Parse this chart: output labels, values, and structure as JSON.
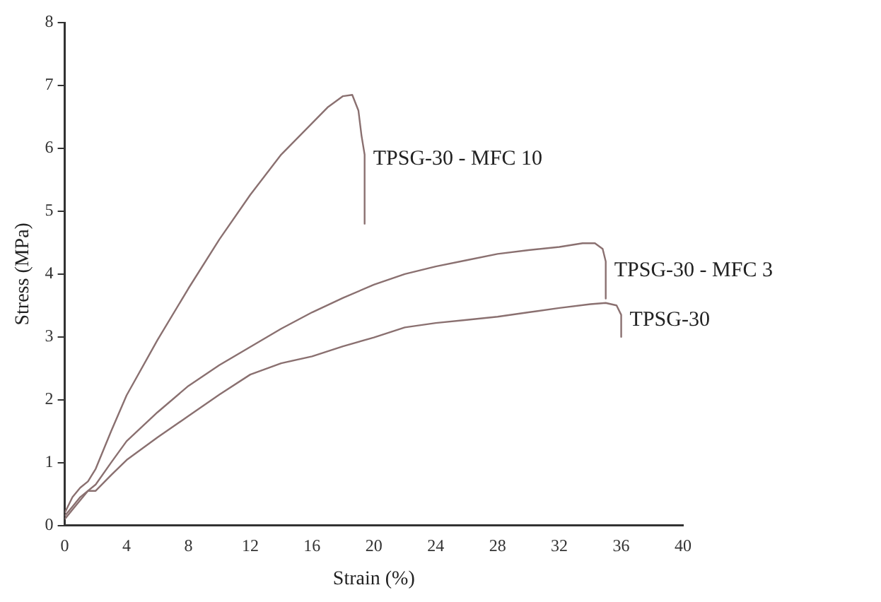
{
  "chart_data": {
    "type": "line",
    "xlabel": "Strain (%)",
    "ylabel": "Stress (MPa)",
    "xlim": [
      0,
      40
    ],
    "xticks": [
      0,
      4,
      8,
      12,
      16,
      20,
      24,
      28,
      32,
      36,
      40
    ],
    "ylim": [
      0,
      8
    ],
    "yticks": [
      0,
      1,
      2,
      3,
      4,
      5,
      6,
      7,
      8
    ],
    "grid": false,
    "legend": false,
    "marker": "none",
    "line_style": "solid",
    "series": [
      {
        "name": "TPSG-30 - MFC 10",
        "color": "#8a7070",
        "x": [
          0,
          0.5,
          1,
          1.5,
          2,
          3,
          4,
          6,
          8,
          10,
          12,
          14,
          16,
          17,
          18,
          18.6,
          19,
          19.2,
          19.4,
          19.4
        ],
        "values": [
          0.2,
          0.45,
          0.6,
          0.7,
          0.9,
          1.5,
          2.07,
          2.95,
          3.77,
          4.55,
          5.26,
          5.9,
          6.4,
          6.65,
          6.83,
          6.85,
          6.6,
          6.2,
          5.9,
          4.8
        ]
      },
      {
        "name": "TPSG-30 - MFC 3",
        "color": "#8a7070",
        "x": [
          0,
          0.5,
          1,
          1.5,
          2,
          3,
          4,
          6,
          8,
          10,
          12,
          14,
          16,
          18,
          20,
          22,
          24,
          26,
          28,
          30,
          32,
          33.5,
          34.3,
          34.8,
          35,
          35
        ],
        "values": [
          0.15,
          0.3,
          0.45,
          0.55,
          0.65,
          1.0,
          1.34,
          1.8,
          2.22,
          2.55,
          2.84,
          3.13,
          3.39,
          3.62,
          3.83,
          4.0,
          4.12,
          4.22,
          4.32,
          4.38,
          4.43,
          4.49,
          4.49,
          4.4,
          4.2,
          3.61
        ]
      },
      {
        "name": "TPSG-30",
        "color": "#8a7070",
        "x": [
          0,
          0.5,
          1,
          1.5,
          2,
          3,
          4,
          6,
          8,
          10,
          12,
          14,
          16,
          18,
          20,
          22,
          24,
          26,
          28,
          30,
          32,
          34,
          35,
          35.7,
          36,
          36
        ],
        "values": [
          0.1,
          0.25,
          0.4,
          0.55,
          0.55,
          0.8,
          1.04,
          1.4,
          1.74,
          2.08,
          2.4,
          2.58,
          2.69,
          2.85,
          2.99,
          3.15,
          3.22,
          3.27,
          3.32,
          3.39,
          3.46,
          3.52,
          3.54,
          3.5,
          3.35,
          3.0
        ]
      }
    ]
  }
}
